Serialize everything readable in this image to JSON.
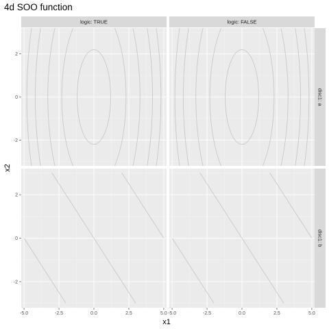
{
  "chart_data": {
    "type": "contour",
    "title": "4d SOO function",
    "xlabel": "x1",
    "ylabel": "x2",
    "xlim": [
      -5.2,
      5.2
    ],
    "ylim": [
      -3.2,
      3.2
    ],
    "x_ticks": [
      -5,
      -2.5,
      0,
      2.5,
      5
    ],
    "x_tick_labels": [
      "-5.0",
      "-2.5",
      "0.0",
      "2.5",
      "5.0"
    ],
    "y_ticks": [
      -2,
      0,
      2
    ],
    "y_tick_labels": [
      "-2",
      "0",
      "2"
    ],
    "grid": true,
    "facet_columns": [
      "logic: TRUE",
      "logic: FALSE"
    ],
    "facet_rows": [
      "disc1: a",
      "disc1: b"
    ],
    "panels": [
      {
        "row": "disc1: a",
        "surface": "ellipses centered at origin",
        "levels": [
          {
            "x_semi_axis": 1.2,
            "y_semi_axis": 2.2
          },
          {
            "x_semi_axis": 2.3,
            "y_semi_axis": 4.2
          },
          {
            "x_semi_axis": 3.3,
            "y_semi_axis": 6.0
          },
          {
            "x_semi_axis": 4.2,
            "y_semi_axis": 7.6
          },
          {
            "x_semi_axis": 4.8,
            "y_semi_axis": 8.7
          }
        ]
      },
      {
        "row": "disc1: b",
        "surface": "parallel lines",
        "lines": [
          {
            "from": [
              -5,
              0
            ],
            "to": [
              -2,
              -3
            ]
          },
          {
            "from": [
              -3,
              3
            ],
            "to": [
              3,
              -3
            ]
          },
          {
            "from": [
              2,
              3
            ],
            "to": [
              5,
              0
            ]
          }
        ]
      }
    ]
  }
}
